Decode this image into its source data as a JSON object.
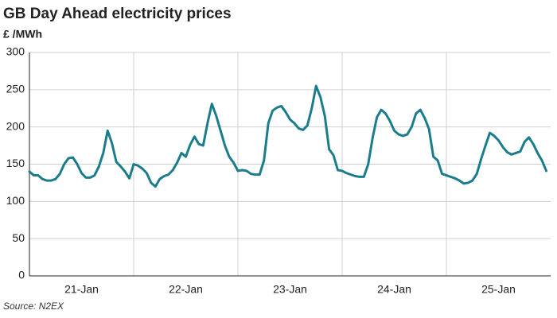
{
  "chart_data": {
    "type": "line",
    "title": "GB Day Ahead electricity prices",
    "subtitle": "£ /MWh",
    "source": "Source: N2EX",
    "categories": [
      null,
      null,
      null,
      null,
      null,
      null,
      null,
      null,
      null,
      null,
      null,
      null,
      "21-Jan",
      null,
      null,
      null,
      null,
      null,
      null,
      null,
      null,
      null,
      null,
      null,
      null,
      null,
      null,
      null,
      null,
      null,
      null,
      null,
      null,
      null,
      null,
      null,
      "22-Jan",
      null,
      null,
      null,
      null,
      null,
      null,
      null,
      null,
      null,
      null,
      null,
      null,
      null,
      null,
      null,
      null,
      null,
      null,
      null,
      null,
      null,
      null,
      null,
      "23-Jan",
      null,
      null,
      null,
      null,
      null,
      null,
      null,
      null,
      null,
      null,
      null,
      null,
      null,
      null,
      null,
      null,
      null,
      null,
      null,
      null,
      null,
      null,
      null,
      "24-Jan",
      null,
      null,
      null,
      null,
      null,
      null,
      null,
      null,
      null,
      null,
      null,
      null,
      null,
      null,
      null,
      null,
      null,
      null,
      null,
      null,
      null,
      null,
      null,
      "25-Jan",
      null,
      null,
      null,
      null,
      null,
      null,
      null,
      null,
      null,
      null,
      null
    ],
    "values": [
      140,
      135,
      135,
      130,
      128,
      128,
      130,
      137,
      150,
      158,
      159,
      150,
      138,
      132,
      132,
      135,
      147,
      165,
      195,
      178,
      153,
      147,
      140,
      131,
      150,
      148,
      144,
      138,
      125,
      120,
      130,
      134,
      136,
      142,
      152,
      165,
      160,
      176,
      187,
      177,
      175,
      205,
      231,
      215,
      195,
      175,
      160,
      152,
      141,
      142,
      141,
      137,
      136,
      136,
      155,
      205,
      222,
      226,
      228,
      220,
      210,
      205,
      198,
      196,
      202,
      225,
      255,
      240,
      215,
      170,
      162,
      142,
      141,
      138,
      136,
      134,
      133,
      133,
      150,
      185,
      213,
      223,
      218,
      208,
      195,
      190,
      188,
      190,
      200,
      218,
      223,
      212,
      197,
      160,
      155,
      137,
      135,
      133,
      131,
      128,
      124,
      125,
      128,
      137,
      157,
      175,
      192,
      188,
      182,
      173,
      166,
      163,
      165,
      167,
      180,
      186,
      177,
      165,
      155,
      141
    ],
    "color": "#1b7d8c",
    "ylim": [
      0,
      300
    ],
    "yticks": [
      0,
      50,
      100,
      150,
      200,
      250,
      300
    ],
    "grid": true
  }
}
